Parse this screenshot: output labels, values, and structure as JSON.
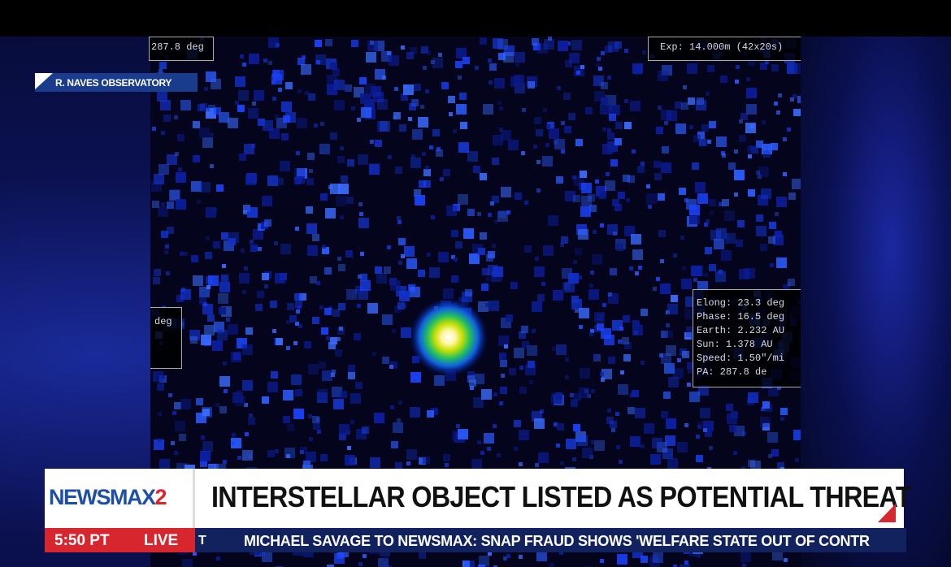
{
  "overlay": {
    "top_left_box": "287.8 deg",
    "top_right_box": "Exp: 14.000m (42x20s)",
    "left_box": "deg",
    "info_box": [
      "Elong: 23.3 deg",
      "Phase: 16.5 deg",
      "Earth: 2.232 AU",
      "Sun: 1.378 AU",
      "Speed: 1.50\"/mi",
      "PA: 287.8 de"
    ]
  },
  "source_tag": "R. NAVES OBSERVATORY",
  "lower_third": {
    "logo": "NEWSMAX",
    "logo_suffix": "2",
    "headline": "INTERSTELLAR OBJECT LISTED AS POTENTIAL THREAT",
    "time": "5:50 PT",
    "live": "LIVE",
    "ticker_fragment": "T",
    "ticker": "MICHAEL SAVAGE TO NEWSMAX: SNAP FRAUD SHOWS 'WELFARE STATE OUT OF CONTR"
  }
}
